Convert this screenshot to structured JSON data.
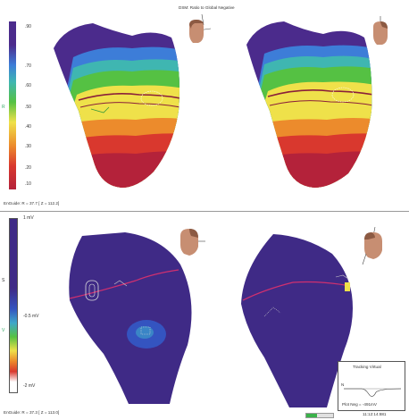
{
  "header": {
    "title": "DSM: Ratio to Global Negative"
  },
  "top_panel": {
    "scale_ticks": [
      ".90",
      ".70",
      ".60",
      ".50",
      ".40",
      ".30",
      ".20",
      ".10"
    ],
    "marker_label": "R",
    "enguide": "EnGuide: R = 37.7  [ Z = 112.2]",
    "colors": {
      "dark": "#4b2b8c",
      "blue": "#3d7dd8",
      "cyan": "#3fb6b1",
      "green": "#55c143",
      "yellow": "#efe14a",
      "orange": "#ec8b2c",
      "red": "#d9382e",
      "darkred": "#b4223a"
    }
  },
  "bottom_panel": {
    "scale_top": "1 mV",
    "scale_mid": "-0.5 mV",
    "scale_bottom": "-2 mV",
    "marker_label": "S",
    "marker_label_2": "V",
    "enguide": "EnGuide: R = 37.3  [ Z = 113.0]",
    "colors": {
      "dark": "#3f2a86",
      "blue": "#3454c0",
      "cyan": "#3fa7c9",
      "line": "#d0306f"
    }
  },
  "tracking": {
    "title": "Tracking Virtual",
    "left_label": "N",
    "footer": "Plot Neg = -491mV"
  },
  "statusbar": {
    "time": "11:12:14:881"
  }
}
